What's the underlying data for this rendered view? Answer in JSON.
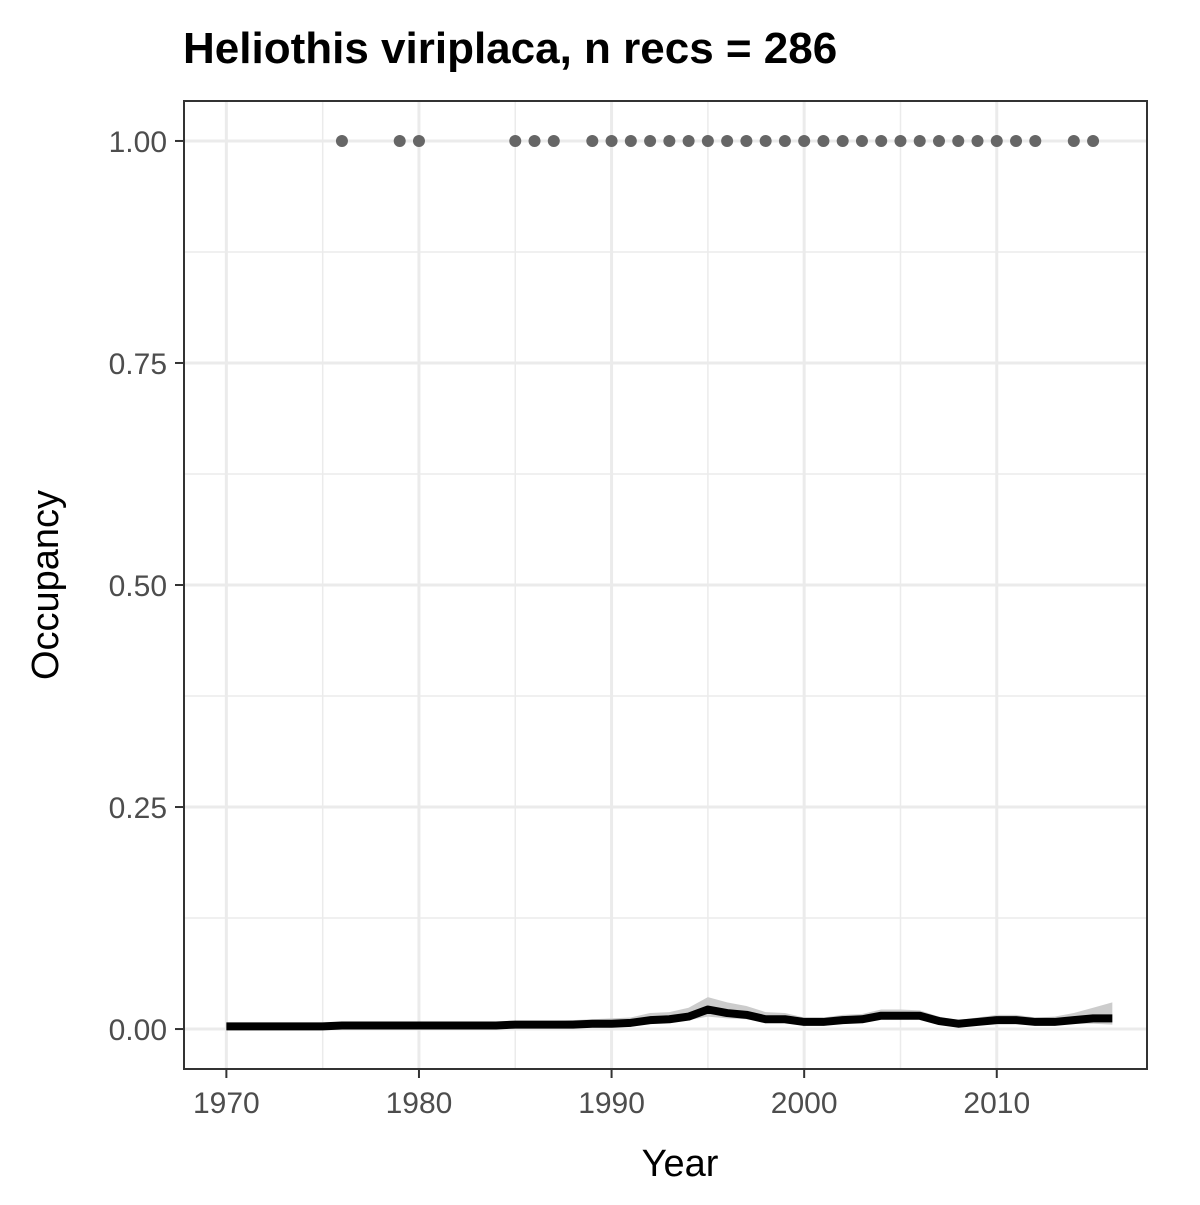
{
  "chart_data": {
    "type": "line",
    "title": "Heliothis viriplaca, n recs = 286",
    "xlabel": "Year",
    "ylabel": "Occupancy",
    "xlim": [
      1967.8,
      2017.8
    ],
    "ylim": [
      -0.045,
      1.045
    ],
    "x_ticks": [
      1970,
      1980,
      1990,
      2000,
      2010
    ],
    "x_tick_labels": [
      "1970",
      "1980",
      "1990",
      "2000",
      "2010"
    ],
    "y_ticks": [
      0,
      0.25,
      0.5,
      0.75,
      1.0
    ],
    "y_tick_labels": [
      "0.00",
      "0.25",
      "0.50",
      "0.75",
      "1.00"
    ],
    "grid": true,
    "legend": "none",
    "colors": {
      "line": "#000000",
      "ribbon": "#cccccc",
      "points": "#666666",
      "grid": "#ebebeb",
      "panel_border": "#333333"
    },
    "series": [
      {
        "kind": "line",
        "x": [
          1970,
          1971,
          1972,
          1973,
          1974,
          1975,
          1976,
          1977,
          1978,
          1979,
          1980,
          1981,
          1982,
          1983,
          1984,
          1985,
          1986,
          1987,
          1988,
          1989,
          1990,
          1991,
          1992,
          1993,
          1994,
          1995,
          1996,
          1997,
          1998,
          1999,
          2000,
          2001,
          2002,
          2003,
          2004,
          2005,
          2006,
          2007,
          2008,
          2009,
          2010,
          2011,
          2012,
          2013,
          2014,
          2015,
          2016
        ],
        "y": [
          0.003,
          0.003,
          0.003,
          0.003,
          0.003,
          0.003,
          0.004,
          0.004,
          0.004,
          0.004,
          0.004,
          0.004,
          0.004,
          0.004,
          0.004,
          0.005,
          0.005,
          0.005,
          0.005,
          0.006,
          0.006,
          0.007,
          0.01,
          0.011,
          0.014,
          0.022,
          0.018,
          0.016,
          0.011,
          0.011,
          0.008,
          0.008,
          0.01,
          0.011,
          0.015,
          0.015,
          0.015,
          0.009,
          0.006,
          0.008,
          0.01,
          0.01,
          0.008,
          0.008,
          0.01,
          0.012,
          0.012
        ],
        "lower": [
          0.001,
          0.001,
          0.001,
          0.001,
          0.001,
          0.001,
          0.002,
          0.002,
          0.002,
          0.002,
          0.002,
          0.002,
          0.002,
          0.002,
          0.002,
          0.003,
          0.003,
          0.003,
          0.003,
          0.004,
          0.004,
          0.005,
          0.007,
          0.008,
          0.01,
          0.014,
          0.012,
          0.011,
          0.008,
          0.008,
          0.006,
          0.006,
          0.007,
          0.008,
          0.011,
          0.011,
          0.011,
          0.006,
          0.004,
          0.005,
          0.007,
          0.007,
          0.005,
          0.005,
          0.006,
          0.006,
          0.005
        ],
        "upper": [
          0.006,
          0.006,
          0.006,
          0.006,
          0.006,
          0.006,
          0.007,
          0.007,
          0.007,
          0.007,
          0.007,
          0.007,
          0.007,
          0.007,
          0.008,
          0.009,
          0.009,
          0.009,
          0.01,
          0.011,
          0.012,
          0.013,
          0.018,
          0.019,
          0.024,
          0.036,
          0.03,
          0.026,
          0.019,
          0.018,
          0.013,
          0.013,
          0.016,
          0.017,
          0.022,
          0.022,
          0.021,
          0.014,
          0.01,
          0.013,
          0.016,
          0.016,
          0.013,
          0.014,
          0.018,
          0.024,
          0.03
        ]
      },
      {
        "kind": "points",
        "x": [
          1976,
          1979,
          1980,
          1985,
          1986,
          1987,
          1989,
          1990,
          1991,
          1992,
          1993,
          1994,
          1995,
          1996,
          1997,
          1998,
          1999,
          2000,
          2001,
          2002,
          2003,
          2004,
          2005,
          2006,
          2007,
          2008,
          2009,
          2010,
          2011,
          2012,
          2014,
          2015
        ],
        "y": [
          1,
          1,
          1,
          1,
          1,
          1,
          1,
          1,
          1,
          1,
          1,
          1,
          1,
          1,
          1,
          1,
          1,
          1,
          1,
          1,
          1,
          1,
          1,
          1,
          1,
          1,
          1,
          1,
          1,
          1,
          1,
          1
        ]
      }
    ]
  }
}
